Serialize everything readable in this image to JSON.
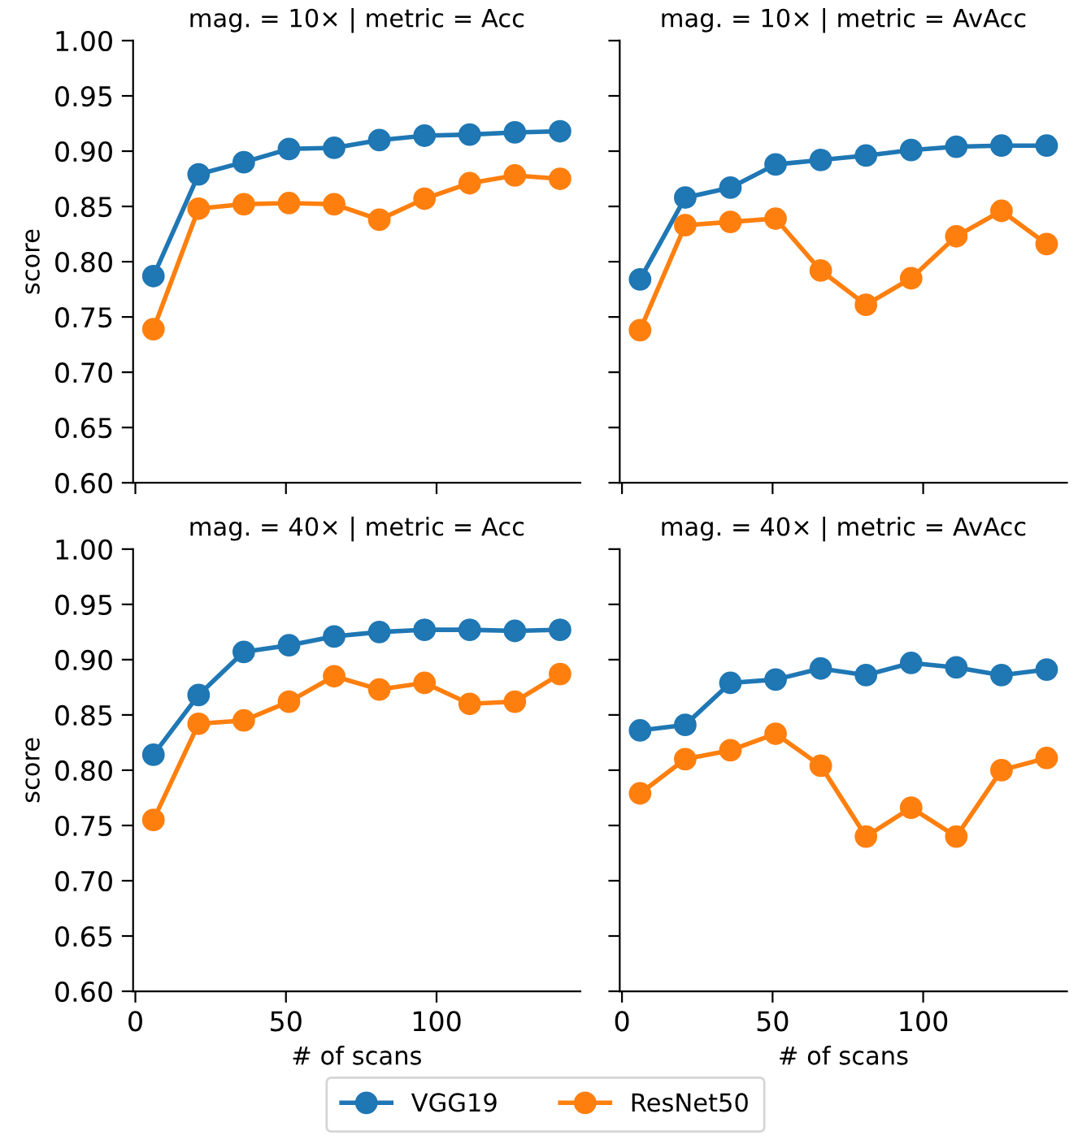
{
  "chart_data": [
    {
      "type": "line",
      "title": "mag. = 10× | metric = Acc",
      "ylabel": "score",
      "x": [
        6,
        21,
        36,
        51,
        66,
        81,
        96,
        111,
        126,
        141
      ],
      "xlim": [
        -0.75,
        147.75
      ],
      "xticks": [
        0,
        50,
        100
      ],
      "ylim": [
        0.6,
        1.0
      ],
      "yticks": [
        {
          "value": 0.6,
          "label": "0.60"
        },
        0.65,
        {
          "value": 0.7,
          "label": "0.70"
        },
        0.75,
        {
          "value": 0.8,
          "label": "0.80"
        },
        0.85,
        {
          "value": 0.9,
          "label": "0.90"
        },
        0.95,
        {
          "value": 1.0,
          "label": "1.00"
        }
      ],
      "tick_labels": "y",
      "marker": "circle",
      "line_style": "solid",
      "legend": "bottom",
      "grid": false,
      "series": [
        {
          "name": "VGG19",
          "color": "#1f77b4",
          "values": [
            0.787,
            0.879,
            0.89,
            0.902,
            0.903,
            0.91,
            0.914,
            0.915,
            0.917,
            0.918
          ]
        },
        {
          "name": "ResNet50",
          "color": "#ff7f0e",
          "values": [
            0.739,
            0.848,
            0.852,
            0.853,
            0.852,
            0.838,
            0.857,
            0.871,
            0.878,
            0.875
          ]
        }
      ]
    },
    {
      "type": "line",
      "title": "mag. = 10× | metric = AvAcc",
      "x": [
        6,
        21,
        36,
        51,
        66,
        81,
        96,
        111,
        126,
        141
      ],
      "xlim": [
        -0.75,
        147.75
      ],
      "xticks": [
        0,
        50,
        100
      ],
      "ylim": [
        0.6,
        1.0
      ],
      "yticks": [
        0.6,
        0.65,
        0.7,
        0.75,
        0.8,
        0.85,
        0.9,
        0.95,
        1.0
      ],
      "tick_labels": false,
      "marker": "circle",
      "line_style": "solid",
      "grid": false,
      "series": [
        {
          "color": "#1f77b4",
          "values": [
            0.784,
            0.858,
            0.867,
            0.888,
            0.892,
            0.896,
            0.901,
            0.904,
            0.905,
            0.905
          ]
        },
        {
          "color": "#ff7f0e",
          "values": [
            0.738,
            0.833,
            0.836,
            0.839,
            0.792,
            0.761,
            0.785,
            0.823,
            0.846,
            0.816
          ]
        }
      ]
    },
    {
      "type": "line",
      "title": "mag. = 40× | metric = Acc",
      "xlabel": "# of scans",
      "ylabel": "score",
      "x": [
        6,
        21,
        36,
        51,
        66,
        81,
        96,
        111,
        126,
        141
      ],
      "xlim": [
        -0.75,
        147.75
      ],
      "xticks": [
        0,
        50,
        100
      ],
      "ylim": [
        0.6,
        1.0
      ],
      "yticks": [
        {
          "value": 0.6,
          "label": "0.60"
        },
        0.65,
        {
          "value": 0.7,
          "label": "0.70"
        },
        0.75,
        {
          "value": 0.8,
          "label": "0.80"
        },
        0.85,
        {
          "value": 0.9,
          "label": "0.90"
        },
        0.95,
        {
          "value": 1.0,
          "label": "1.00"
        }
      ],
      "marker": "circle",
      "line_style": "solid",
      "grid": false,
      "series": [
        {
          "color": "#1f77b4",
          "values": [
            0.814,
            0.868,
            0.907,
            0.913,
            0.921,
            0.925,
            0.927,
            0.927,
            0.926,
            0.927
          ]
        },
        {
          "color": "#ff7f0e",
          "values": [
            0.755,
            0.842,
            0.845,
            0.862,
            0.885,
            0.873,
            0.879,
            0.86,
            0.862,
            0.887
          ]
        }
      ]
    },
    {
      "type": "line",
      "title": "mag. = 40× | metric = AvAcc",
      "xlabel": "# of scans",
      "x": [
        6,
        21,
        36,
        51,
        66,
        81,
        96,
        111,
        126,
        141
      ],
      "xlim": [
        -0.75,
        147.75
      ],
      "xticks": [
        0,
        50,
        100
      ],
      "ylim": [
        0.6,
        1.0
      ],
      "yticks": [
        0.6,
        0.65,
        0.7,
        0.75,
        0.8,
        0.85,
        0.9,
        0.95,
        1.0
      ],
      "tick_labels": "x",
      "marker": "circle",
      "line_style": "solid",
      "grid": false,
      "series": [
        {
          "color": "#1f77b4",
          "values": [
            0.836,
            0.841,
            0.879,
            0.882,
            0.892,
            0.886,
            0.897,
            0.893,
            0.886,
            0.891
          ]
        },
        {
          "color": "#ff7f0e",
          "values": [
            0.779,
            0.81,
            0.818,
            0.833,
            0.804,
            0.74,
            0.766,
            0.74,
            0.8,
            0.811
          ]
        }
      ]
    }
  ]
}
